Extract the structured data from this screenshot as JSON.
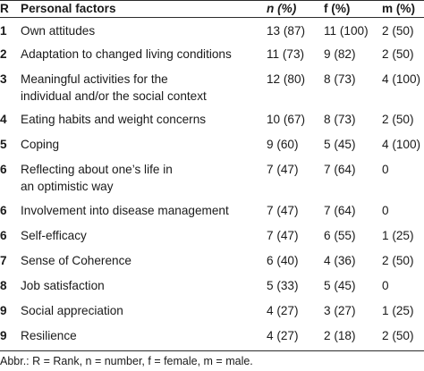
{
  "table": {
    "headers": {
      "rank": "R",
      "factor": "Personal factors",
      "n": "n (%)",
      "f": "f (%)",
      "m": "m (%)"
    },
    "rows": [
      {
        "rank": "1",
        "factor": [
          "Own attitudes"
        ],
        "n": "13 (87)",
        "f": "11 (100)",
        "m": "2 (50)"
      },
      {
        "rank": "2",
        "factor": [
          "Adaptation to changed living conditions"
        ],
        "n": "11 (73)",
        "f": "9 (82)",
        "m": "2 (50)"
      },
      {
        "rank": "3",
        "factor": [
          "Meaningful activities for the",
          "individual and/or the social context"
        ],
        "n": "12 (80)",
        "f": "8 (73)",
        "m": "4 (100)"
      },
      {
        "rank": "4",
        "factor": [
          "Eating habits and weight concerns"
        ],
        "n": "10 (67)",
        "f": "8 (73)",
        "m": "2 (50)"
      },
      {
        "rank": "5",
        "factor": [
          "Coping"
        ],
        "n": "9 (60)",
        "f": "5 (45)",
        "m": "4 (100)"
      },
      {
        "rank": "6",
        "factor": [
          "Reflecting about one’s life in",
          "an optimistic way"
        ],
        "n": "7 (47)",
        "f": "7 (64)",
        "m": "0"
      },
      {
        "rank": "6",
        "factor": [
          "Involvement into disease management"
        ],
        "n": "7 (47)",
        "f": "7 (64)",
        "m": "0"
      },
      {
        "rank": "6",
        "factor": [
          "Self-efficacy"
        ],
        "n": "7 (47)",
        "f": "6 (55)",
        "m": "1 (25)"
      },
      {
        "rank": "7",
        "factor": [
          "Sense of Coherence"
        ],
        "n": "6 (40)",
        "f": "4 (36)",
        "m": "2 (50)"
      },
      {
        "rank": "8",
        "factor": [
          "Job satisfaction"
        ],
        "n": "5 (33)",
        "f": "5 (45)",
        "m": "0"
      },
      {
        "rank": "9",
        "factor": [
          "Social appreciation"
        ],
        "n": "4 (27)",
        "f": "3 (27)",
        "m": "1 (25)"
      },
      {
        "rank": "9",
        "factor": [
          "Resilience"
        ],
        "n": "4 (27)",
        "f": "2 (18)",
        "m": "2 (50)"
      }
    ]
  },
  "footer": "Abbr.: R = Rank, n = number, f = female, m = male."
}
